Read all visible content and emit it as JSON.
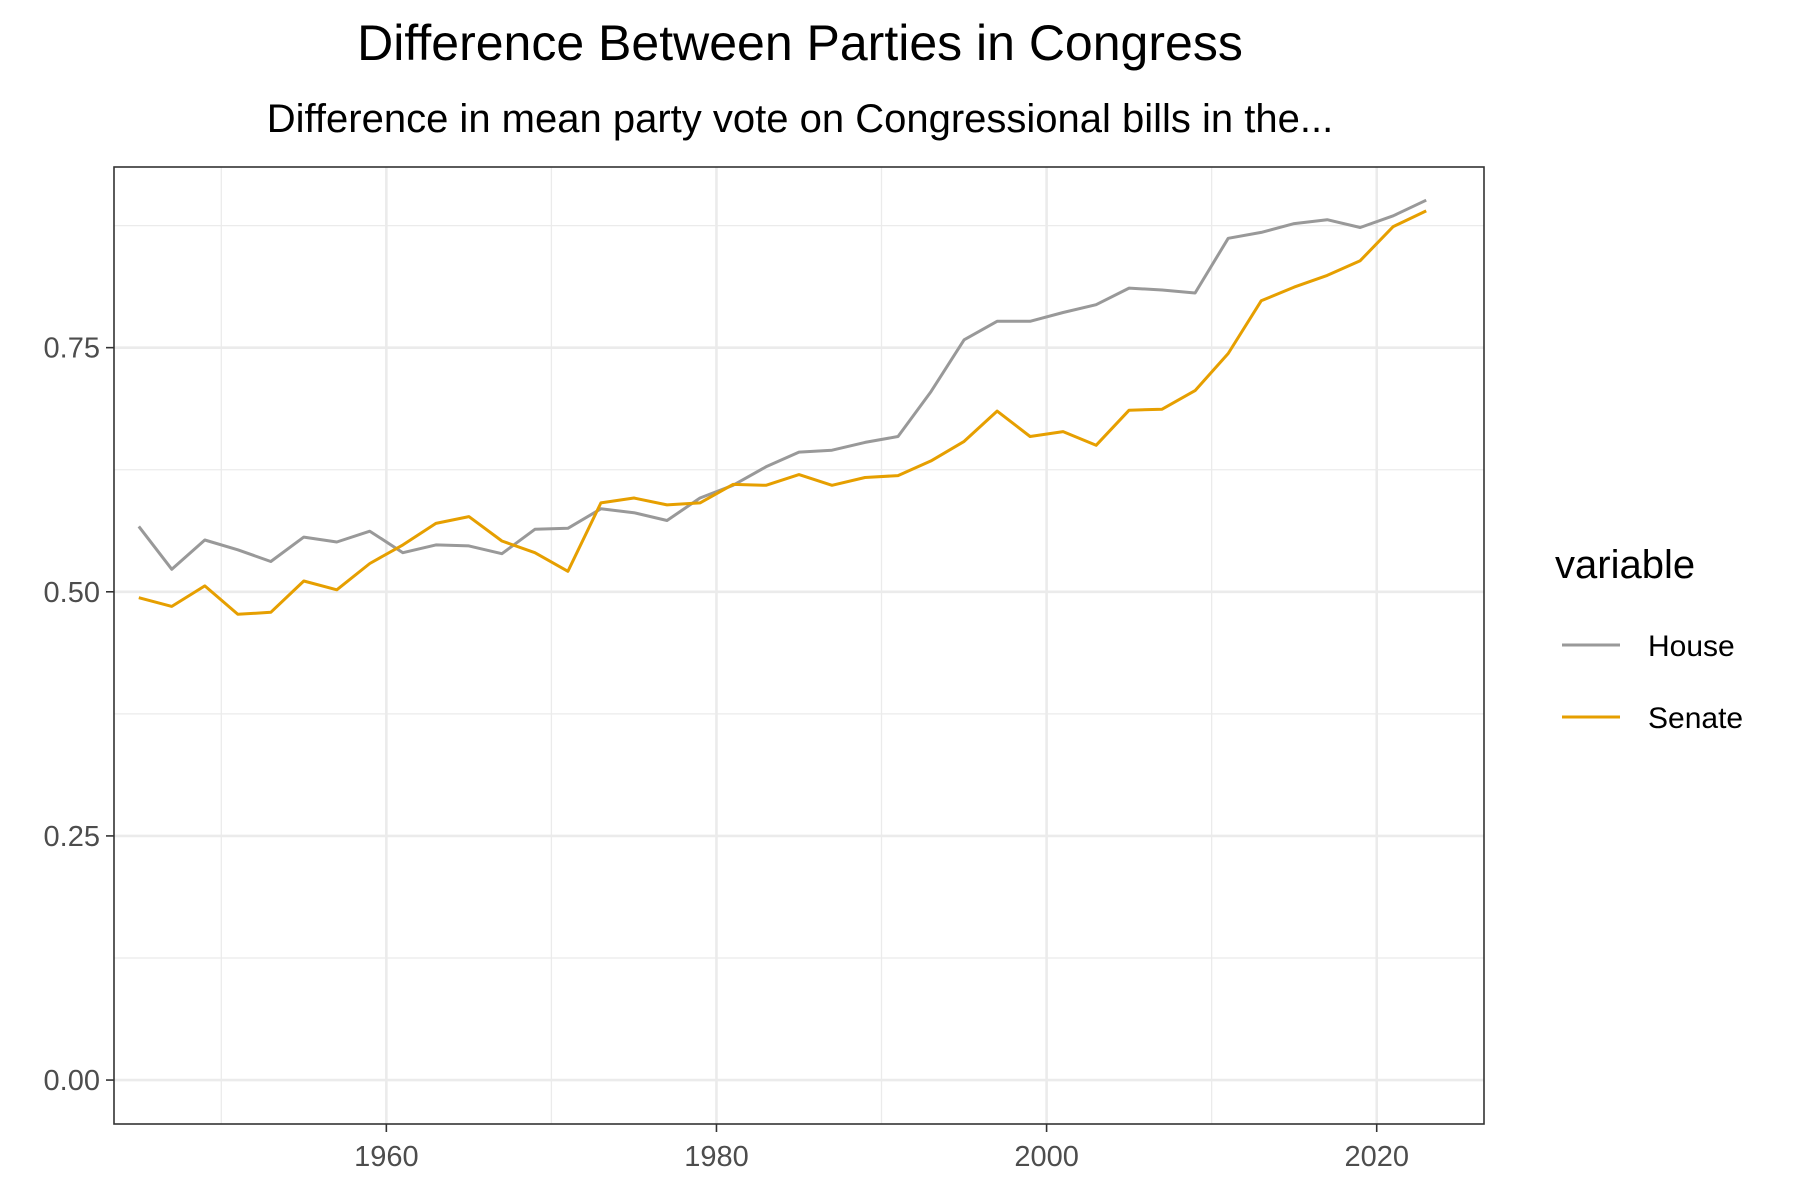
{
  "chart_data": {
    "type": "line",
    "title": "Difference Between Parties in Congress",
    "subtitle": "Difference in mean party vote on Congressional bills in the...",
    "xlabel": "",
    "ylabel": "",
    "xlim": [
      1943.5,
      2026.5
    ],
    "ylim": [
      -0.045,
      0.935
    ],
    "x_ticks": [
      1960,
      1980,
      2000,
      2020
    ],
    "x_tick_labels": [
      "1960",
      "1980",
      "2000",
      "2020"
    ],
    "y_ticks": [
      0,
      0.25,
      0.5,
      0.75
    ],
    "y_tick_labels": [
      "0.00",
      "0.25",
      "0.50",
      "0.75"
    ],
    "x_minor_ticks": [
      1950,
      1970,
      1990,
      2010
    ],
    "y_minor_ticks": [
      0.125,
      0.375,
      0.625,
      0.875
    ],
    "grid": true,
    "legend": {
      "title": "variable",
      "position": "right"
    },
    "x": [
      1945,
      1947,
      1949,
      1951,
      1953,
      1955,
      1957,
      1959,
      1961,
      1963,
      1965,
      1967,
      1969,
      1971,
      1973,
      1975,
      1977,
      1979,
      1981,
      1983,
      1985,
      1987,
      1989,
      1991,
      1993,
      1995,
      1997,
      1999,
      2001,
      2003,
      2005,
      2007,
      2009,
      2011,
      2013,
      2015,
      2017,
      2019,
      2021,
      2023
    ],
    "series": [
      {
        "name": "House",
        "color": "#999999",
        "values": [
          0.567,
          0.523,
          0.553,
          0.543,
          0.531,
          0.556,
          0.551,
          0.562,
          0.54,
          0.548,
          0.547,
          0.539,
          0.564,
          0.565,
          0.585,
          0.581,
          0.573,
          0.596,
          0.609,
          0.628,
          0.643,
          0.645,
          0.653,
          0.659,
          0.705,
          0.758,
          0.777,
          0.777,
          0.786,
          0.794,
          0.811,
          0.809,
          0.806,
          0.862,
          0.868,
          0.877,
          0.881,
          0.873,
          0.885,
          0.901
        ]
      },
      {
        "name": "Senate",
        "color": "#E69F00",
        "values": [
          0.494,
          0.485,
          0.506,
          0.477,
          0.479,
          0.511,
          0.502,
          0.529,
          0.548,
          0.57,
          0.577,
          0.552,
          0.54,
          0.521,
          0.591,
          0.596,
          0.589,
          0.591,
          0.61,
          0.609,
          0.62,
          0.609,
          0.617,
          0.619,
          0.634,
          0.654,
          0.685,
          0.659,
          0.664,
          0.65,
          0.686,
          0.687,
          0.706,
          0.744,
          0.798,
          0.812,
          0.824,
          0.839,
          0.874,
          0.89
        ]
      }
    ]
  }
}
